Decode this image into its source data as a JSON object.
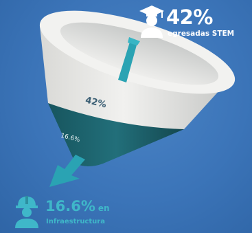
{
  "top_stat": {
    "value": "42%",
    "label": "egresadas STEM",
    "icon": "graduate-icon"
  },
  "funnel": {
    "upper_label": "42%",
    "lower_label": "16.6%",
    "upper_share": 0.42,
    "lower_share": 0.166
  },
  "bottom_stat": {
    "value": "16.6%",
    "suffix": "en",
    "label": "Infraestructura",
    "icon": "engineer-icon"
  },
  "colors": {
    "background": "#3b74b8",
    "funnel_top": "#e9e9e7",
    "funnel_bottom": "#1f6b76",
    "arrow": "#2aa3b3",
    "accent": "#3fb7c9"
  }
}
